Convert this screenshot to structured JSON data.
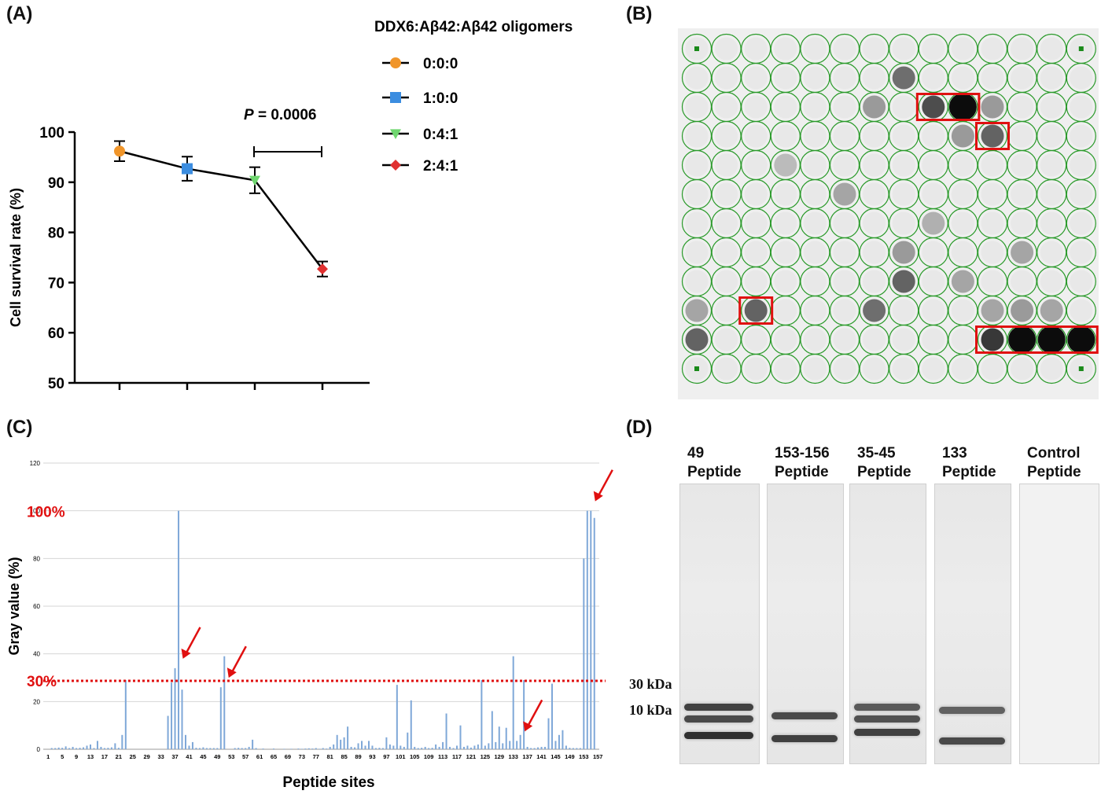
{
  "panels": {
    "a": "(A)",
    "b": "(B)",
    "c": "(C)",
    "d": "(D)"
  },
  "chart_a": {
    "type": "line",
    "legend_title": "DDX6:Aβ42:Aβ42 oligomers",
    "legend_placement": "right",
    "ylabel": "Cell survival rate (%)",
    "ylim": [
      50,
      100
    ],
    "yticks": [
      "50",
      "60",
      "70",
      "80",
      "90",
      "100"
    ],
    "annotation": {
      "italic": "P",
      "rest": " = 0.0006"
    },
    "points": [
      {
        "name": "0:0:0",
        "value": 96.2,
        "err": 2.0,
        "color": "#f0952a",
        "marker": "circle"
      },
      {
        "name": "1:0:0",
        "value": 92.7,
        "err": 2.4,
        "color": "#3b8de0",
        "marker": "square"
      },
      {
        "name": "0:4:1",
        "value": 90.4,
        "err": 2.6,
        "color": "#6fd66f",
        "marker": "triangle"
      },
      {
        "name": "2:4:1",
        "value": 72.7,
        "err": 1.5,
        "color": "#e03030",
        "marker": "diamond"
      }
    ]
  },
  "chart_c": {
    "type": "bar",
    "xlabel": "Peptide sites",
    "ylabel": "Gray value (%)",
    "ylim": [
      0,
      120
    ],
    "yticks": [
      "0",
      "20",
      "40",
      "60",
      "80",
      "100",
      "120"
    ],
    "ref_100_label": "100%",
    "threshold_label": "30%",
    "threshold": 30,
    "xtick_labels": [
      "1",
      "5",
      "9",
      "13",
      "17",
      "21",
      "25",
      "29",
      "33",
      "37",
      "41",
      "45",
      "49",
      "53",
      "57",
      "61",
      "65",
      "69",
      "73",
      "77",
      "81",
      "85",
      "89",
      "93",
      "97",
      "101",
      "105",
      "109",
      "113",
      "117",
      "121",
      "125",
      "129",
      "133",
      "137",
      "141",
      "145",
      "149",
      "153",
      "157"
    ],
    "bar_color": "#7fa8d8",
    "highlight_color": "#e01010",
    "values": [
      0,
      0.5,
      0.5,
      0.7,
      0.6,
      1.2,
      0.5,
      1.0,
      0.5,
      0.6,
      0.8,
      1.5,
      2.0,
      0.5,
      3.5,
      1.0,
      0.5,
      0.6,
      0.8,
      2.5,
      0.6,
      6.0,
      29,
      0,
      0,
      0,
      0,
      0,
      0,
      0,
      0,
      0,
      0,
      0,
      14,
      28,
      34,
      100,
      25,
      6,
      1.5,
      3,
      0.6,
      0.5,
      0.8,
      0.5,
      0.5,
      0.5,
      0.5,
      26,
      39,
      0,
      0,
      0.5,
      0.6,
      0.5,
      0.5,
      1.0,
      4.0,
      0.5,
      0,
      0.3,
      0,
      0,
      0.3,
      0,
      0,
      0.2,
      0,
      0.2,
      0,
      0.3,
      0.2,
      0.3,
      0.4,
      0.3,
      0.5,
      0.2,
      0.5,
      0.3,
      1.0,
      2.0,
      6.0,
      4.0,
      5.0,
      9.5,
      1.0,
      0.8,
      2.5,
      3.5,
      1.5,
      3.5,
      1.5,
      0.5,
      0.6,
      0.5,
      5.0,
      2.0,
      1.5,
      27,
      1.5,
      1.0,
      7.0,
      20.5,
      1.0,
      0.5,
      0.6,
      1.0,
      0.5,
      0.6,
      2.0,
      1.0,
      3.0,
      15,
      1.0,
      0.5,
      1.5,
      10,
      1.0,
      1.5,
      0.7,
      1.5,
      2.0,
      29,
      1.5,
      2.5,
      16,
      3.0,
      9.5,
      2.5,
      9.0,
      3.5,
      39,
      3.5,
      6.0,
      29,
      1.0,
      0.5,
      0.5,
      0.8,
      1.0,
      1.0,
      13,
      27.5,
      3.5,
      6.0,
      8.0,
      1.5,
      0.6,
      0.5,
      0.5,
      0.5,
      80,
      100,
      100,
      97
    ],
    "arrows_at_sites": [
      37,
      50,
      134,
      154
    ]
  },
  "blot_grid": {
    "rows": 12,
    "cols": 13,
    "circle_color": "#2a9a2a",
    "dark_spots": [
      {
        "r": 1,
        "c": 7,
        "i": 0.55
      },
      {
        "r": 2,
        "c": 6,
        "i": 0.35
      },
      {
        "r": 2,
        "c": 8,
        "i": 0.7
      },
      {
        "r": 2,
        "c": 9,
        "i": 1.0
      },
      {
        "r": 2,
        "c": 10,
        "i": 0.35
      },
      {
        "r": 3,
        "c": 9,
        "i": 0.35
      },
      {
        "r": 3,
        "c": 10,
        "i": 0.6
      },
      {
        "r": 5,
        "c": 5,
        "i": 0.3
      },
      {
        "r": 7,
        "c": 7,
        "i": 0.35
      },
      {
        "r": 7,
        "c": 11,
        "i": 0.3
      },
      {
        "r": 8,
        "c": 7,
        "i": 0.6
      },
      {
        "r": 8,
        "c": 9,
        "i": 0.3
      },
      {
        "r": 9,
        "c": 2,
        "i": 0.6
      },
      {
        "r": 9,
        "c": 6,
        "i": 0.55
      },
      {
        "r": 9,
        "c": 11,
        "i": 0.35
      },
      {
        "r": 9,
        "c": 12,
        "i": 0.3
      },
      {
        "r": 10,
        "c": 0,
        "i": 0.6
      },
      {
        "r": 10,
        "c": 10,
        "i": 0.8
      },
      {
        "r": 10,
        "c": 11,
        "i": 1.0
      },
      {
        "r": 10,
        "c": 12,
        "i": 1.0
      },
      {
        "r": 10,
        "c": 13,
        "i": 1.0
      },
      {
        "r": 9,
        "c": 10,
        "i": 0.3
      },
      {
        "r": 9,
        "c": 0,
        "i": 0.3
      },
      {
        "r": 6,
        "c": 8,
        "i": 0.25
      },
      {
        "r": 4,
        "c": 3,
        "i": 0.2
      }
    ],
    "boxes": [
      {
        "r": 2,
        "c0": 8,
        "c1": 9
      },
      {
        "r": 3,
        "c0": 10,
        "c1": 10
      },
      {
        "r": 9,
        "c0": 2,
        "c1": 2
      },
      {
        "r": 10,
        "c0": 10,
        "c1": 13
      }
    ]
  },
  "western": {
    "lanes": [
      {
        "line1": "49",
        "line2": "Peptide",
        "bands": [
          {
            "y": 0.79,
            "d": 0.85
          },
          {
            "y": 0.83,
            "d": 0.8
          },
          {
            "y": 0.89,
            "d": 0.95
          }
        ]
      },
      {
        "line1": "153-156",
        "line2": "Peptide",
        "bands": [
          {
            "y": 0.82,
            "d": 0.8
          },
          {
            "y": 0.9,
            "d": 0.85
          }
        ]
      },
      {
        "line1": "35-45",
        "line2": "Peptide",
        "bands": [
          {
            "y": 0.79,
            "d": 0.7
          },
          {
            "y": 0.83,
            "d": 0.75
          },
          {
            "y": 0.88,
            "d": 0.85
          }
        ]
      },
      {
        "line1": "133",
        "line2": "Peptide",
        "bands": [
          {
            "y": 0.8,
            "d": 0.65
          },
          {
            "y": 0.91,
            "d": 0.8
          }
        ]
      },
      {
        "line1": "Control",
        "line2": "Peptide",
        "bands": []
      }
    ],
    "marker_30": "30 kDa",
    "marker_10": "10 kDa"
  }
}
